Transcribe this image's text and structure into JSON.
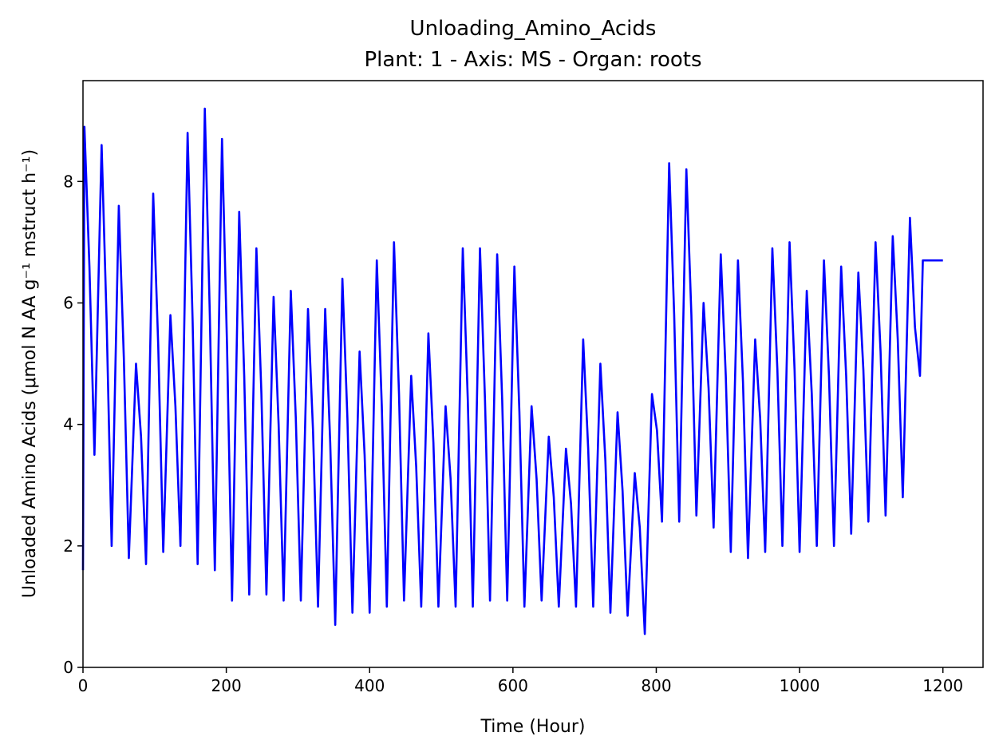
{
  "chart_data": {
    "type": "line",
    "title": "Unloading_Amino_Acids",
    "subtitle": "Plant: 1 - Axis: MS - Organ: roots",
    "x_label": "Time (Hour)",
    "y_label": "Unloaded Amino Acids (μmol N AA g⁻¹ mstruct h⁻¹)",
    "xlim": [
      0,
      1256
    ],
    "ylim": [
      0,
      9.66
    ],
    "xticks": [
      0,
      200,
      400,
      600,
      800,
      1000,
      1200
    ],
    "yticks": [
      0,
      2,
      4,
      6,
      8
    ],
    "grid": false,
    "x": [
      0,
      2,
      9,
      16,
      26,
      33,
      40,
      50,
      57,
      64,
      74,
      81,
      88,
      98,
      105,
      112,
      122,
      129,
      136,
      146,
      153,
      160,
      170,
      177,
      184,
      194,
      201,
      208,
      218,
      225,
      232,
      242,
      249,
      256,
      266,
      273,
      280,
      290,
      297,
      304,
      314,
      321,
      328,
      338,
      345,
      352,
      362,
      369,
      376,
      386,
      393,
      400,
      410,
      417,
      424,
      434,
      441,
      448,
      458,
      465,
      472,
      482,
      489,
      496,
      506,
      513,
      520,
      530,
      537,
      544,
      554,
      561,
      568,
      578,
      585,
      592,
      602,
      609,
      616,
      626,
      633,
      640,
      650,
      657,
      664,
      674,
      681,
      688,
      698,
      705,
      712,
      722,
      729,
      736,
      746,
      753,
      760,
      770,
      777,
      784,
      794,
      801,
      808,
      818,
      825,
      832,
      842,
      849,
      856,
      866,
      873,
      880,
      890,
      897,
      904,
      914,
      921,
      928,
      938,
      945,
      952,
      962,
      969,
      976,
      986,
      993,
      1000,
      1010,
      1017,
      1024,
      1034,
      1041,
      1048,
      1058,
      1065,
      1072,
      1082,
      1089,
      1096,
      1106,
      1113,
      1120,
      1130,
      1137,
      1144,
      1154,
      1161,
      1168,
      1172,
      1200
    ],
    "series": [
      {
        "name": "Unloading_Amino_Acids",
        "color": "#0000ff",
        "values": [
          1.6,
          8.9,
          6.6,
          3.5,
          8.6,
          5.7,
          2.0,
          7.6,
          5.1,
          1.8,
          5.0,
          3.8,
          1.7,
          7.8,
          5.3,
          1.9,
          5.8,
          4.3,
          2.0,
          8.8,
          5.7,
          1.7,
          9.2,
          5.8,
          1.6,
          8.7,
          5.3,
          1.1,
          7.5,
          4.8,
          1.2,
          6.9,
          4.5,
          1.2,
          6.1,
          4.0,
          1.1,
          6.2,
          4.1,
          1.1,
          5.9,
          3.9,
          1.0,
          5.9,
          3.7,
          0.7,
          6.4,
          4.1,
          0.9,
          5.2,
          3.5,
          0.9,
          6.7,
          4.3,
          1.0,
          7.0,
          4.5,
          1.1,
          4.8,
          3.3,
          1.0,
          5.5,
          3.7,
          1.0,
          4.3,
          3.1,
          1.0,
          6.9,
          4.4,
          1.0,
          6.9,
          4.4,
          1.1,
          6.8,
          4.4,
          1.1,
          6.6,
          4.2,
          1.0,
          4.3,
          3.1,
          1.1,
          3.8,
          2.8,
          1.0,
          3.6,
          2.7,
          1.0,
          5.4,
          3.6,
          1.0,
          5.0,
          3.4,
          0.9,
          4.2,
          2.9,
          0.85,
          3.2,
          2.3,
          0.55,
          4.5,
          3.9,
          2.4,
          8.3,
          5.8,
          2.4,
          8.2,
          5.8,
          2.5,
          6.0,
          4.6,
          2.3,
          6.8,
          4.8,
          1.9,
          6.7,
          4.7,
          1.8,
          5.4,
          4.1,
          1.9,
          6.9,
          4.9,
          2.0,
          7.0,
          4.9,
          1.9,
          6.2,
          4.5,
          2.0,
          6.7,
          4.8,
          2.0,
          6.6,
          4.8,
          2.2,
          6.5,
          4.9,
          2.4,
          7.0,
          5.2,
          2.5,
          7.1,
          5.4,
          2.8,
          7.4,
          5.6,
          4.8,
          6.7,
          6.7
        ]
      }
    ]
  }
}
